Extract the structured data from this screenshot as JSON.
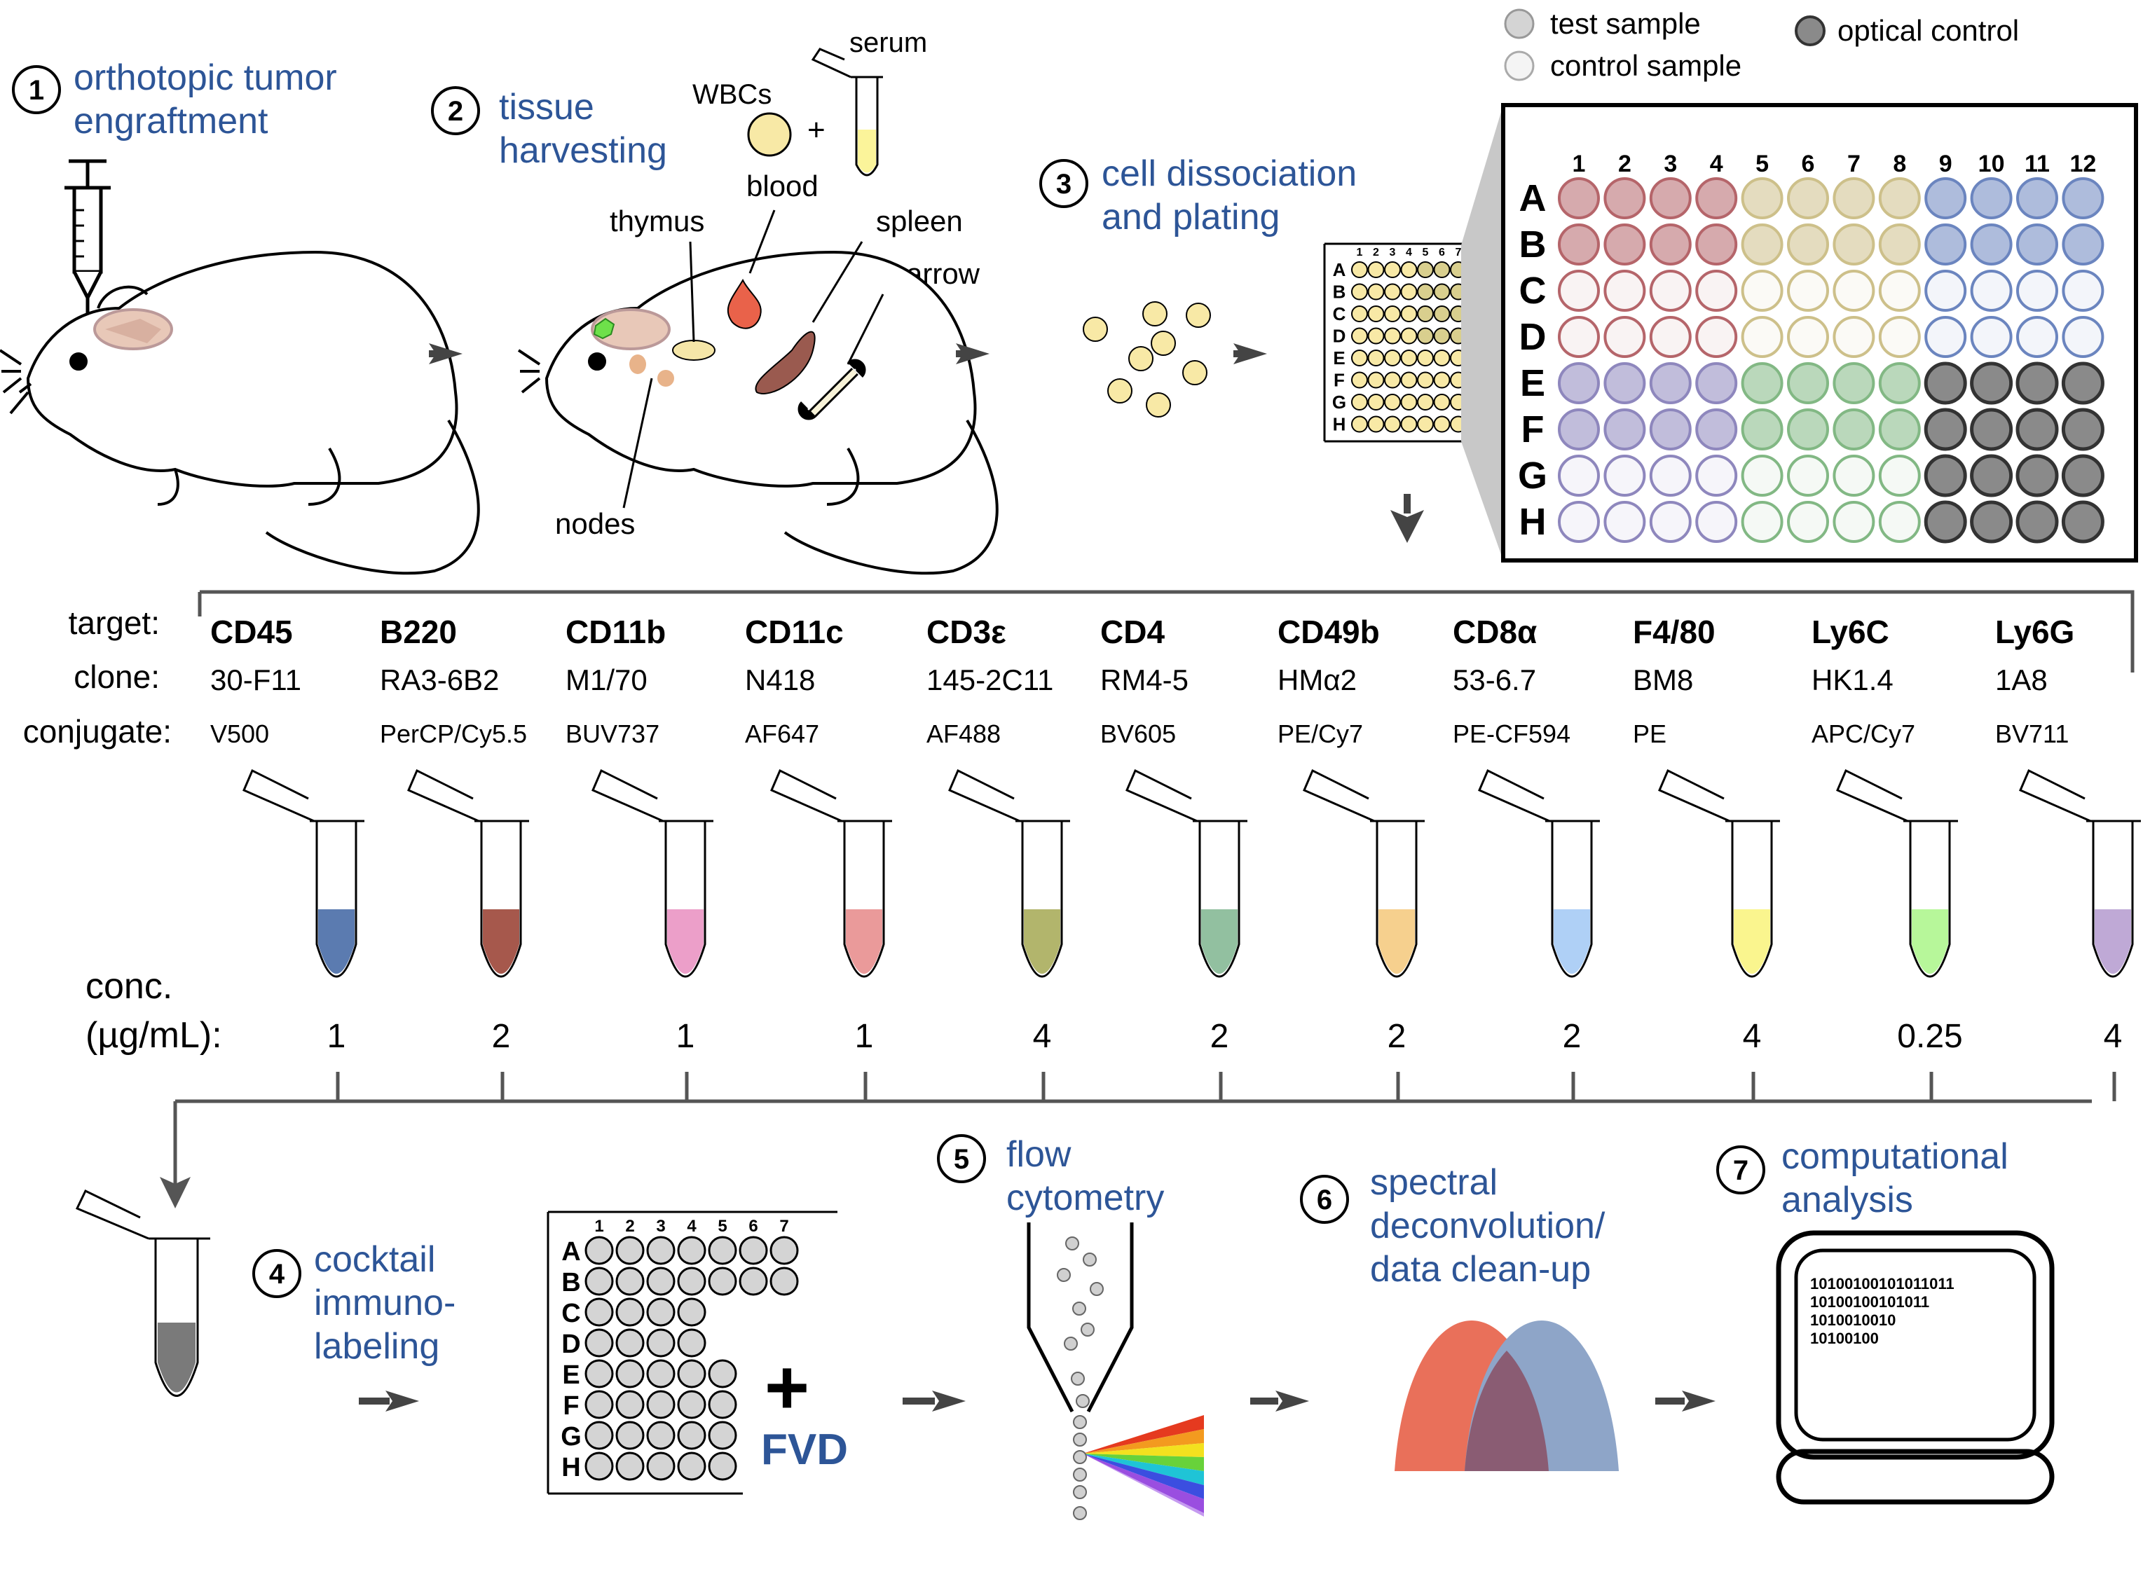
{
  "steps": {
    "s1": {
      "num": "1",
      "line1": "orthotopic tumor",
      "line2": "engraftment"
    },
    "s2": {
      "num": "2",
      "line1": "tissue",
      "line2": "harvesting"
    },
    "s3": {
      "num": "3",
      "line1": "cell dissociation",
      "line2": "and plating"
    },
    "s4": {
      "num": "4",
      "line1": "cocktail",
      "line2": "immuno-",
      "line3": "labeling"
    },
    "s5": {
      "num": "5",
      "line1": "flow",
      "line2": "cytometry"
    },
    "s6": {
      "num": "6",
      "line1": "spectral",
      "line2": "deconvolution/",
      "line3": "data clean-up"
    },
    "s7": {
      "num": "7",
      "line1": "computational",
      "line2": "analysis"
    }
  },
  "tissue_labels": {
    "wbcs": "WBCs",
    "plus": "+",
    "serum": "serum",
    "blood": "blood",
    "thymus": "thymus",
    "spleen": "spleen",
    "marrow": "marrow",
    "nodes": "nodes"
  },
  "legend": {
    "test_sample": "test sample",
    "control_sample": "control sample",
    "optical_control": "optical control",
    "tissues": [
      {
        "label": "blood",
        "color": "#b5656a"
      },
      {
        "label": "marrow",
        "color": "#6b85bf"
      },
      {
        "label": "nodes",
        "color": "#82b884"
      },
      {
        "label": "spleen",
        "color": "#8e87bd"
      },
      {
        "label": "thymus",
        "color": "#cdc08a"
      }
    ]
  },
  "plate": {
    "cols": [
      "1",
      "2",
      "3",
      "4",
      "5",
      "6",
      "7",
      "8",
      "9",
      "10",
      "11",
      "12"
    ],
    "rows": [
      "A",
      "B",
      "C",
      "D",
      "E",
      "F",
      "G",
      "H"
    ],
    "colors": {
      "blood": "#b5656a",
      "marrow": "#6b85bf",
      "nodes": "#82b884",
      "spleen": "#8e87bd",
      "thymus": "#cdc08a",
      "optical": "#555555"
    }
  },
  "small_plate": {
    "cols": [
      "1",
      "2",
      "3",
      "4",
      "5",
      "6",
      "7"
    ],
    "rows": [
      "A",
      "B",
      "C",
      "D",
      "E",
      "F",
      "G",
      "H"
    ]
  },
  "panel": {
    "row_labels": {
      "target": "target:",
      "clone": "clone:",
      "conjugate": "conjugate:",
      "conc1": "conc.",
      "conc2": "(µg/mL):"
    },
    "antibodies": [
      {
        "target": "CD45",
        "clone": "30-F11",
        "conjugate": "V500",
        "conc": "1",
        "color": "#5b7bb0"
      },
      {
        "target": "B220",
        "clone": "RA3-6B2",
        "conjugate": "PerCP/Cy5.5",
        "conc": "2",
        "color": "#a6584c"
      },
      {
        "target": "CD11b",
        "clone": "M1/70",
        "conjugate": "BUV737",
        "conc": "1",
        "color": "#ec9fc9"
      },
      {
        "target": "CD11c",
        "clone": "N418",
        "conjugate": "AF647",
        "conc": "1",
        "color": "#ea9a9a"
      },
      {
        "target": "CD3ε",
        "clone": "145-2C11",
        "conjugate": "AF488",
        "conc": "4",
        "color": "#b2b56c"
      },
      {
        "target": "CD4",
        "clone": "RM4-5",
        "conjugate": "BV605",
        "conc": "2",
        "color": "#92c0a0"
      },
      {
        "target": "CD49b",
        "clone": "HMα2",
        "conjugate": "PE/Cy7",
        "conc": "2",
        "color": "#f6d08e"
      },
      {
        "target": "CD8α",
        "clone": "53-6.7",
        "conjugate": "PE-CF594",
        "conc": "2",
        "color": "#afd0f6"
      },
      {
        "target": "F4/80",
        "clone": "BM8",
        "conjugate": "PE",
        "conc": "4",
        "color": "#faf58e"
      },
      {
        "target": "Ly6C",
        "clone": "HK1.4",
        "conjugate": "APC/Cy7",
        "conc": "0.25",
        "color": "#b7f79a"
      },
      {
        "target": "Ly6G",
        "clone": "1A8",
        "conjugate": "BV711",
        "conc": "4",
        "color": "#bfa9d6"
      }
    ]
  },
  "fvd": {
    "plus": "+",
    "label": "FVD"
  },
  "computer": {
    "lines": [
      "10100100101011011",
      "10100100101011",
      "1010010010",
      "10100100"
    ]
  },
  "colors": {
    "accent_blue": "#2d5597",
    "spectral_left": "#e9705a",
    "spectral_right": "#8ea5c8",
    "spectral_overlap": "#8a5c73"
  }
}
